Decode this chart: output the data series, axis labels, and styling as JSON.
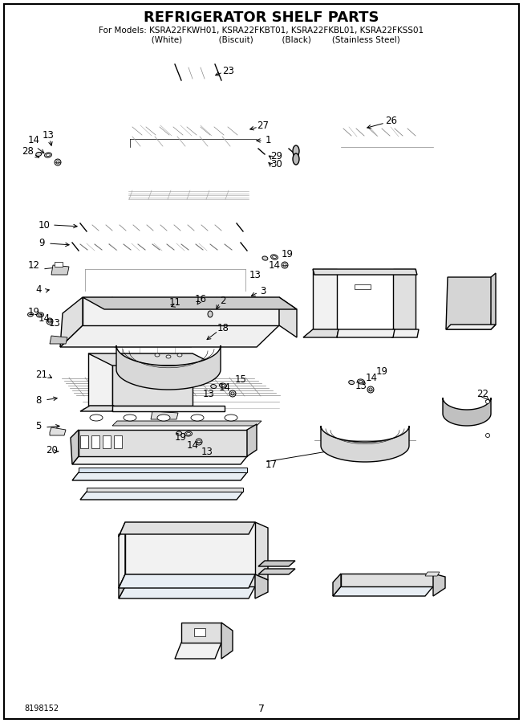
{
  "title": "REFRIGERATOR SHELF PARTS",
  "subtitle1": "For Models: KSRA22FKWH01, KSRA22FKBT01, KSRA22FKBL01, KSRA22FKSS01",
  "subtitle2": "           (White)              (Biscuit)           (Black)        (Stainless Steel)",
  "part_number": "8198152",
  "page_number": "7",
  "bg_color": "#ffffff",
  "border_color": "#000000",
  "text_color": "#000000",
  "title_fontsize": 13,
  "subtitle_fontsize": 7.5,
  "label_fontsize": 8.5
}
